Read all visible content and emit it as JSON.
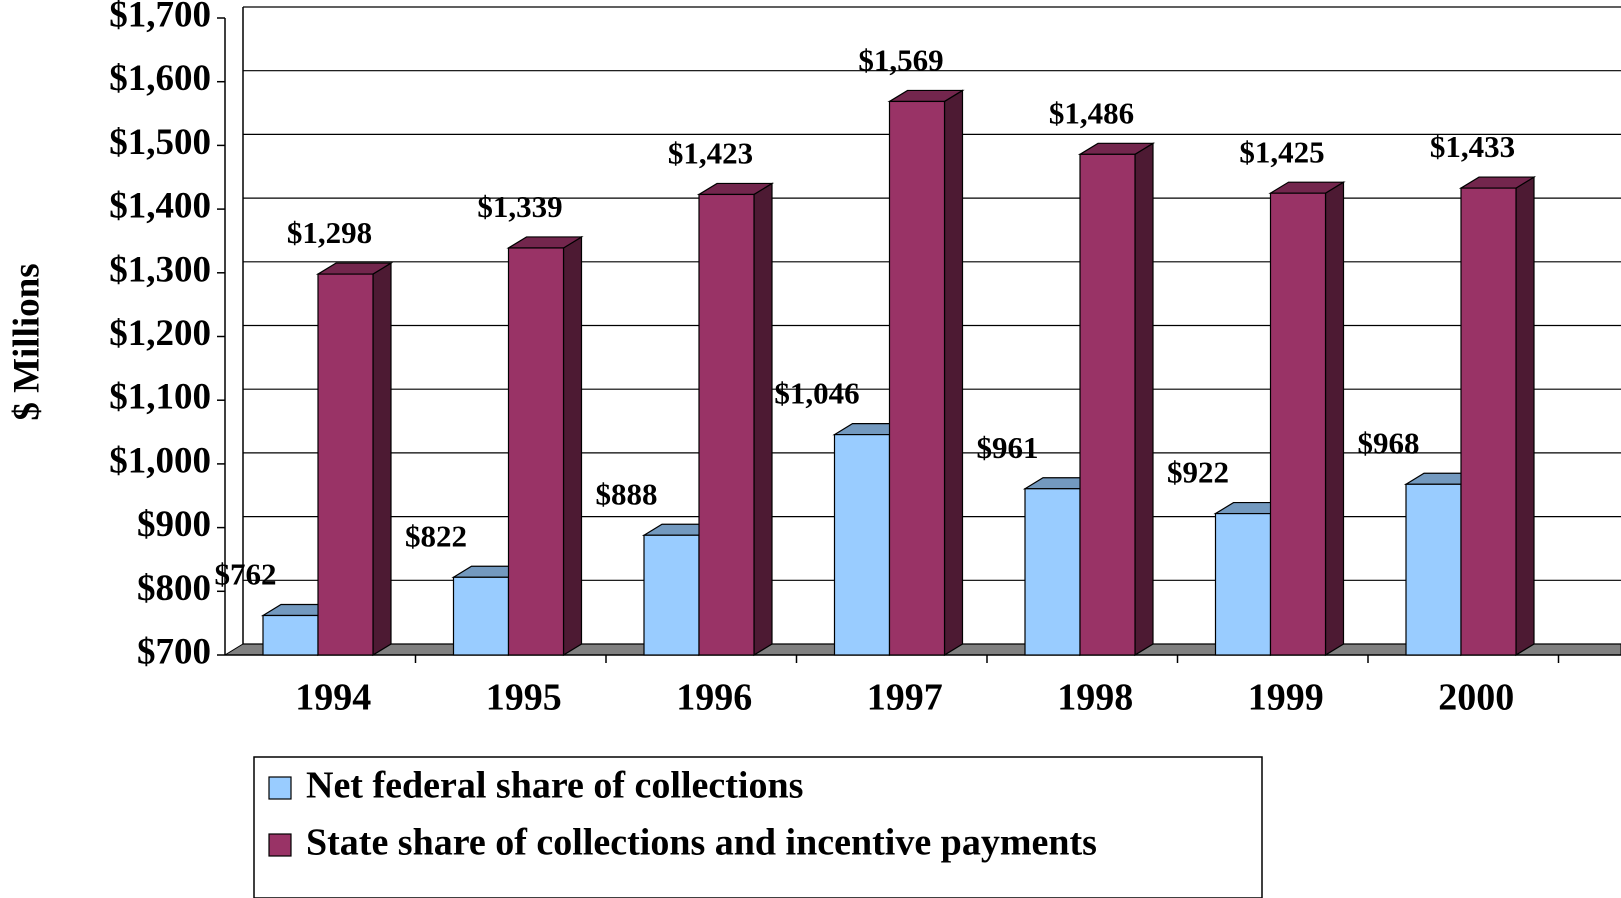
{
  "chart_data": {
    "type": "bar3d",
    "ylabel": "$ Millions",
    "categories": [
      "1994",
      "1995",
      "1996",
      "1997",
      "1998",
      "1999",
      "2000"
    ],
    "series": [
      {
        "name": "Net federal share of collections",
        "color": "#99ccff",
        "values": [
          762,
          822,
          888,
          1046,
          961,
          922,
          968
        ],
        "value_labels": [
          "$762",
          "$822",
          "$888",
          "$1,046",
          "$961",
          "$922",
          "$968"
        ]
      },
      {
        "name": "State share of collections and incentive payments",
        "color": "#993366",
        "values": [
          1298,
          1339,
          1423,
          1569,
          1486,
          1425,
          1433
        ],
        "value_labels": [
          "$1,298",
          "$1,339",
          "$1,423",
          "$1,569",
          "$1,486",
          "$1,425",
          "$1,433"
        ]
      }
    ],
    "ylim": [
      700,
      1700
    ],
    "yticks": [
      {
        "value": 700,
        "label": "$700"
      },
      {
        "value": 800,
        "label": "$800"
      },
      {
        "value": 900,
        "label": "$900"
      },
      {
        "value": 1000,
        "label": "$1,000"
      },
      {
        "value": 1100,
        "label": "$1,100"
      },
      {
        "value": 1200,
        "label": "$1,200"
      },
      {
        "value": 1300,
        "label": "$1,300"
      },
      {
        "value": 1400,
        "label": "$1,400"
      },
      {
        "value": 1500,
        "label": "$1,500"
      },
      {
        "value": 1600,
        "label": "$1,600"
      },
      {
        "value": 1700,
        "label": "$1,700"
      }
    ],
    "grid": true
  }
}
